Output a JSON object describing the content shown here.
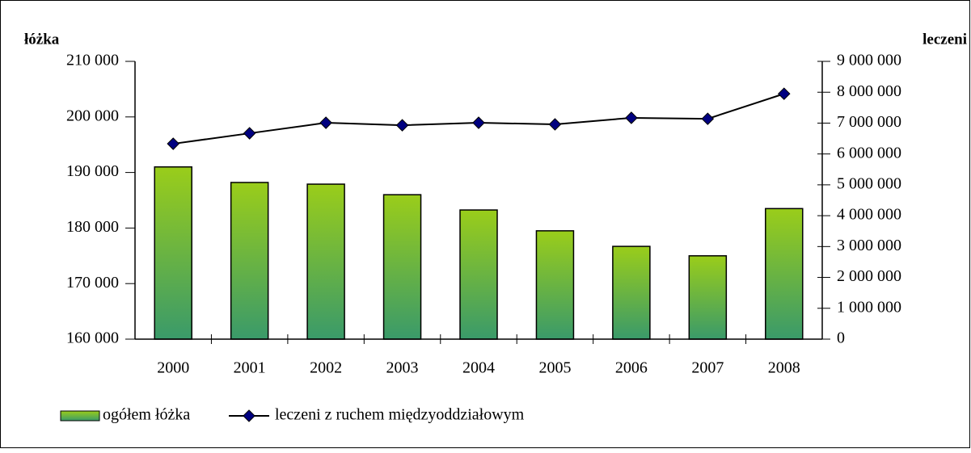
{
  "chart_data": {
    "type": "bar",
    "y_label": "łóżka",
    "y2_label": "leczeni",
    "categories": [
      "2000",
      "2001",
      "2002",
      "2003",
      "2004",
      "2005",
      "2006",
      "2007",
      "2008"
    ],
    "series": [
      {
        "name": "ogółem łóżka",
        "type": "bar",
        "gradient": [
          "#9acd1a",
          "#3a9a6a"
        ],
        "values": [
          191000,
          188200,
          187900,
          186000,
          183250,
          179500,
          176700,
          175000,
          183500
        ]
      },
      {
        "name": "leczeni z ruchem międzyoddziałowym",
        "type": "line",
        "axis": "y2",
        "color": "#000000",
        "marker_color": "#000080",
        "values": [
          6330000,
          6670000,
          7010000,
          6930000,
          7010000,
          6960000,
          7170000,
          7140000,
          7950000
        ]
      }
    ],
    "ylim": [
      160000,
      210000
    ],
    "yticks": [
      {
        "value": 160000,
        "label": "160 000"
      },
      {
        "value": 170000,
        "label": "170 000"
      },
      {
        "value": 180000,
        "label": "180 000"
      },
      {
        "value": 190000,
        "label": "190 000"
      },
      {
        "value": 200000,
        "label": "200 000"
      },
      {
        "value": 210000,
        "label": "210 000"
      }
    ],
    "y2lim": [
      0,
      9000000
    ],
    "y2ticks": [
      0,
      {
        "value": 1000000,
        "label": "1 000 000"
      },
      {
        "value": 2000000,
        "label": "2 000 000"
      },
      {
        "value": 3000000,
        "label": "3 000 000"
      },
      {
        "value": 4000000,
        "label": "4 000 000"
      },
      {
        "value": 5000000,
        "label": "5 000 000"
      },
      {
        "value": 6000000,
        "label": "6 000 000"
      },
      {
        "value": 7000000,
        "label": "7 000 000"
      },
      {
        "value": 8000000,
        "label": "8 000 000"
      },
      {
        "value": 9000000,
        "label": "9 000 000"
      }
    ]
  }
}
